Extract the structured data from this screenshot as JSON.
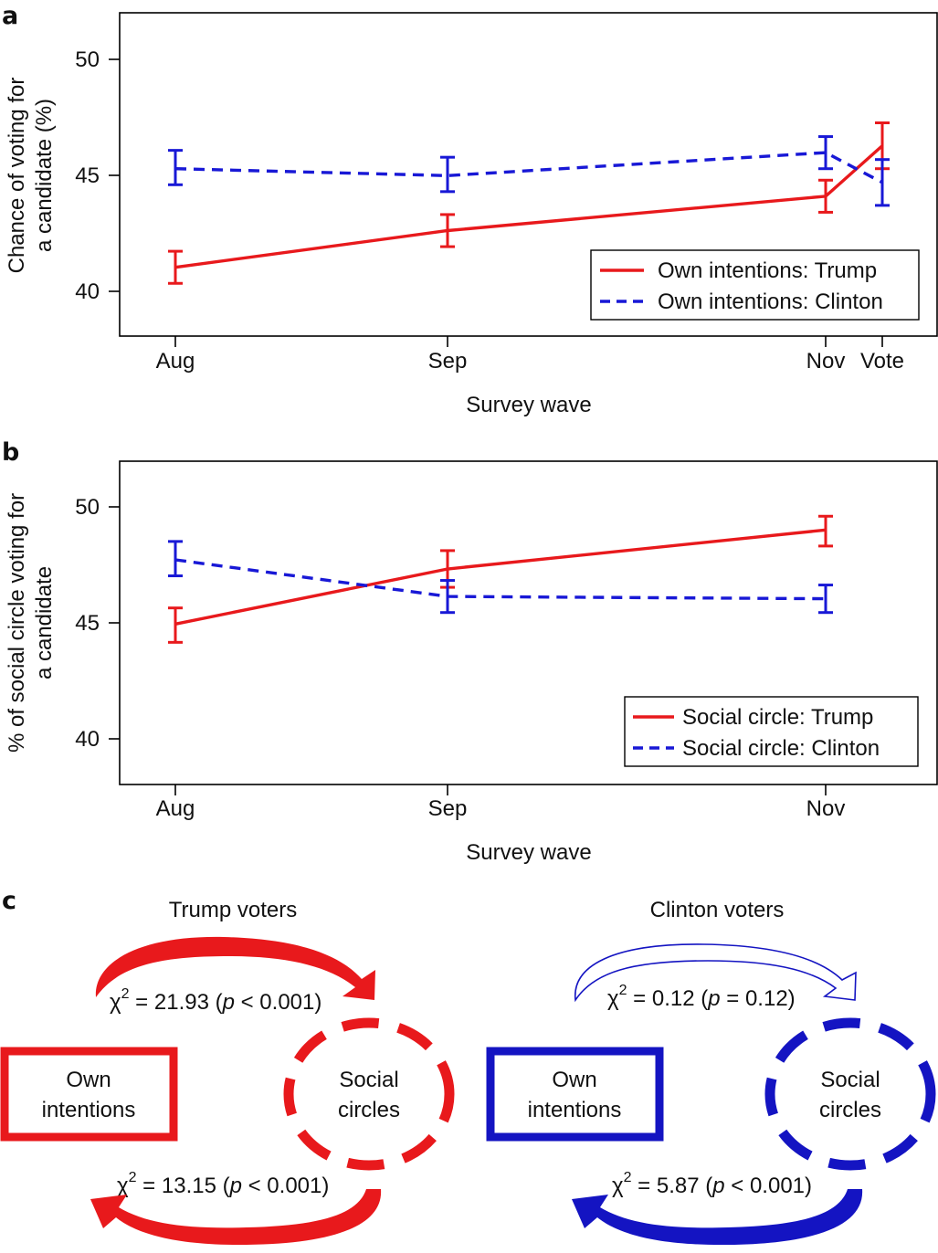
{
  "panels": {
    "a": {
      "label": "a",
      "chart_data": {
        "type": "line",
        "categories": [
          "Aug",
          "Sep",
          "Nov",
          "Vote"
        ],
        "xlabel": "Survey wave",
        "ylabel_lines": [
          "Chance of voting for",
          "a candidate (%)"
        ],
        "ylim": [
          37.9,
          52.0
        ],
        "yticks": [
          "40",
          "45",
          "50"
        ],
        "series": [
          {
            "name": "Own intentions: Trump",
            "color": "#e8191c",
            "dash": "solid",
            "values": [
              40.9,
              42.5,
              44.0,
              46.2
            ],
            "lower": [
              40.2,
              41.8,
              43.3,
              45.2
            ],
            "upper": [
              41.6,
              43.2,
              44.7,
              47.2
            ]
          },
          {
            "name": "Own intentions: Clinton",
            "color": "#1818d6",
            "dash": "dashed",
            "values": [
              45.2,
              44.9,
              45.9,
              44.6
            ],
            "lower": [
              44.5,
              44.2,
              45.2,
              43.6
            ],
            "upper": [
              46.0,
              45.7,
              46.6,
              45.6
            ]
          }
        ]
      }
    },
    "b": {
      "label": "b",
      "chart_data": {
        "type": "line",
        "categories": [
          "Aug",
          "Sep",
          "Nov"
        ],
        "xlabel": "Survey wave",
        "ylabel_lines": [
          "% of social circle voting for",
          "a candidate"
        ],
        "ylim": [
          37.9,
          52.0
        ],
        "yticks": [
          "40",
          "45",
          "50"
        ],
        "series": [
          {
            "name": "Social circle: Trump",
            "color": "#e8191c",
            "dash": "solid",
            "values": [
              44.9,
              47.3,
              49.0
            ],
            "lower": [
              44.1,
              46.5,
              48.3
            ],
            "upper": [
              45.6,
              48.1,
              49.6
            ]
          },
          {
            "name": "Social circle: Clinton",
            "color": "#1818d6",
            "dash": "dashed",
            "values": [
              47.7,
              46.1,
              46.0
            ],
            "lower": [
              47.0,
              45.4,
              45.4
            ],
            "upper": [
              48.5,
              46.8,
              46.6
            ]
          }
        ]
      }
    },
    "c": {
      "label": "c",
      "groups": [
        {
          "title": "Trump voters",
          "color": "#e8191c",
          "own_label": [
            "Own",
            "intentions"
          ],
          "social_label": [
            "Social",
            "circles"
          ],
          "top_stat": {
            "chi": "χ",
            "sup": "2",
            "before": " = 21.93 (",
            "p": "p",
            "after": " < 0.001)"
          },
          "bottom_stat": {
            "chi": "χ",
            "sup": "2",
            "before": " = 13.15 (",
            "p": "p",
            "after": " < 0.001)"
          }
        },
        {
          "title": "Clinton voters",
          "color": "#1414c2",
          "own_label": [
            "Own",
            "intentions"
          ],
          "social_label": [
            "Social",
            "circles"
          ],
          "top_stat": {
            "chi": "χ",
            "sup": "2",
            "before": " = 0.12 (",
            "p": "p",
            "after": " = 0.12)"
          },
          "bottom_stat": {
            "chi": "χ",
            "sup": "2",
            "before": " = 5.87 (",
            "p": "p",
            "after": " < 0.001)"
          }
        }
      ]
    }
  }
}
